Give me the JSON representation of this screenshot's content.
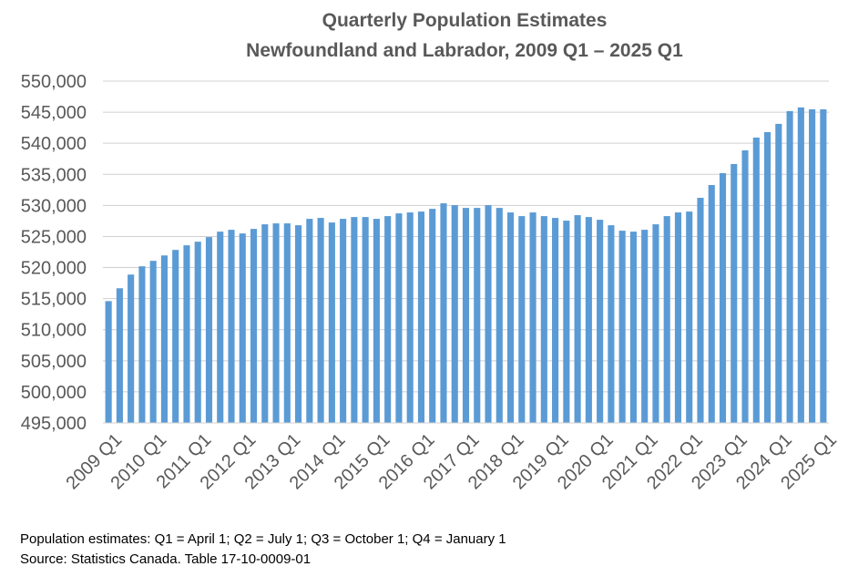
{
  "chart_data": {
    "type": "bar",
    "title": "Quarterly Population Estimates",
    "subtitle": "Newfoundland and Labrador, 2009 Q1 – 2025 Q1",
    "xlabel": "",
    "ylabel": "",
    "ylim": [
      495000,
      550000
    ],
    "yticks": [
      "495,000",
      "500,000",
      "505,000",
      "510,000",
      "515,000",
      "520,000",
      "525,000",
      "530,000",
      "535,000",
      "540,000",
      "545,000",
      "550,000"
    ],
    "xtick_labels": [
      "2009 Q1",
      "2010 Q1",
      "2011 Q1",
      "2012 Q1",
      "2013 Q1",
      "2014 Q1",
      "2015 Q1",
      "2016 Q1",
      "2017 Q1",
      "2018 Q1",
      "2019 Q1",
      "2020 Q1",
      "2021 Q1",
      "2022 Q1",
      "2023 Q1",
      "2024 Q1",
      "2025 Q1"
    ],
    "grid": true,
    "bar_color": "#5b9bd5",
    "categories": [
      "2009 Q1",
      "2009 Q2",
      "2009 Q3",
      "2009 Q4",
      "2010 Q1",
      "2010 Q2",
      "2010 Q3",
      "2010 Q4",
      "2011 Q1",
      "2011 Q2",
      "2011 Q3",
      "2011 Q4",
      "2012 Q1",
      "2012 Q2",
      "2012 Q3",
      "2012 Q4",
      "2013 Q1",
      "2013 Q2",
      "2013 Q3",
      "2013 Q4",
      "2014 Q1",
      "2014 Q2",
      "2014 Q3",
      "2014 Q4",
      "2015 Q1",
      "2015 Q2",
      "2015 Q3",
      "2015 Q4",
      "2016 Q1",
      "2016 Q2",
      "2016 Q3",
      "2016 Q4",
      "2017 Q1",
      "2017 Q2",
      "2017 Q3",
      "2017 Q4",
      "2018 Q1",
      "2018 Q2",
      "2018 Q3",
      "2018 Q4",
      "2019 Q1",
      "2019 Q2",
      "2019 Q3",
      "2019 Q4",
      "2020 Q1",
      "2020 Q2",
      "2020 Q3",
      "2020 Q4",
      "2021 Q1",
      "2021 Q2",
      "2021 Q3",
      "2021 Q4",
      "2022 Q1",
      "2022 Q2",
      "2022 Q3",
      "2022 Q4",
      "2023 Q1",
      "2023 Q2",
      "2023 Q3",
      "2023 Q4",
      "2024 Q1",
      "2024 Q2",
      "2024 Q3",
      "2024 Q4",
      "2025 Q1"
    ],
    "values": [
      514600,
      516670,
      518870,
      520200,
      521080,
      521950,
      522840,
      523580,
      524160,
      524900,
      525780,
      526080,
      525490,
      526220,
      526960,
      527110,
      527110,
      526810,
      527840,
      527990,
      527250,
      527840,
      528130,
      528130,
      527840,
      528280,
      528720,
      528870,
      529010,
      529450,
      530340,
      530040,
      529600,
      529600,
      530040,
      529600,
      528870,
      528280,
      528870,
      528280,
      527990,
      527550,
      528430,
      528130,
      527690,
      526810,
      525930,
      525780,
      526080,
      526960,
      528280,
      528870,
      529010,
      531220,
      533280,
      535190,
      536660,
      538860,
      540920,
      541800,
      543120,
      545180,
      545770,
      545470,
      545470
    ]
  },
  "footnotes": {
    "line1": "Population estimates: Q1 = April 1; Q2 = July 1; Q3 = October 1; Q4 = January 1",
    "line2": "Source: Statistics Canada. Table 17-10-0009-01"
  }
}
